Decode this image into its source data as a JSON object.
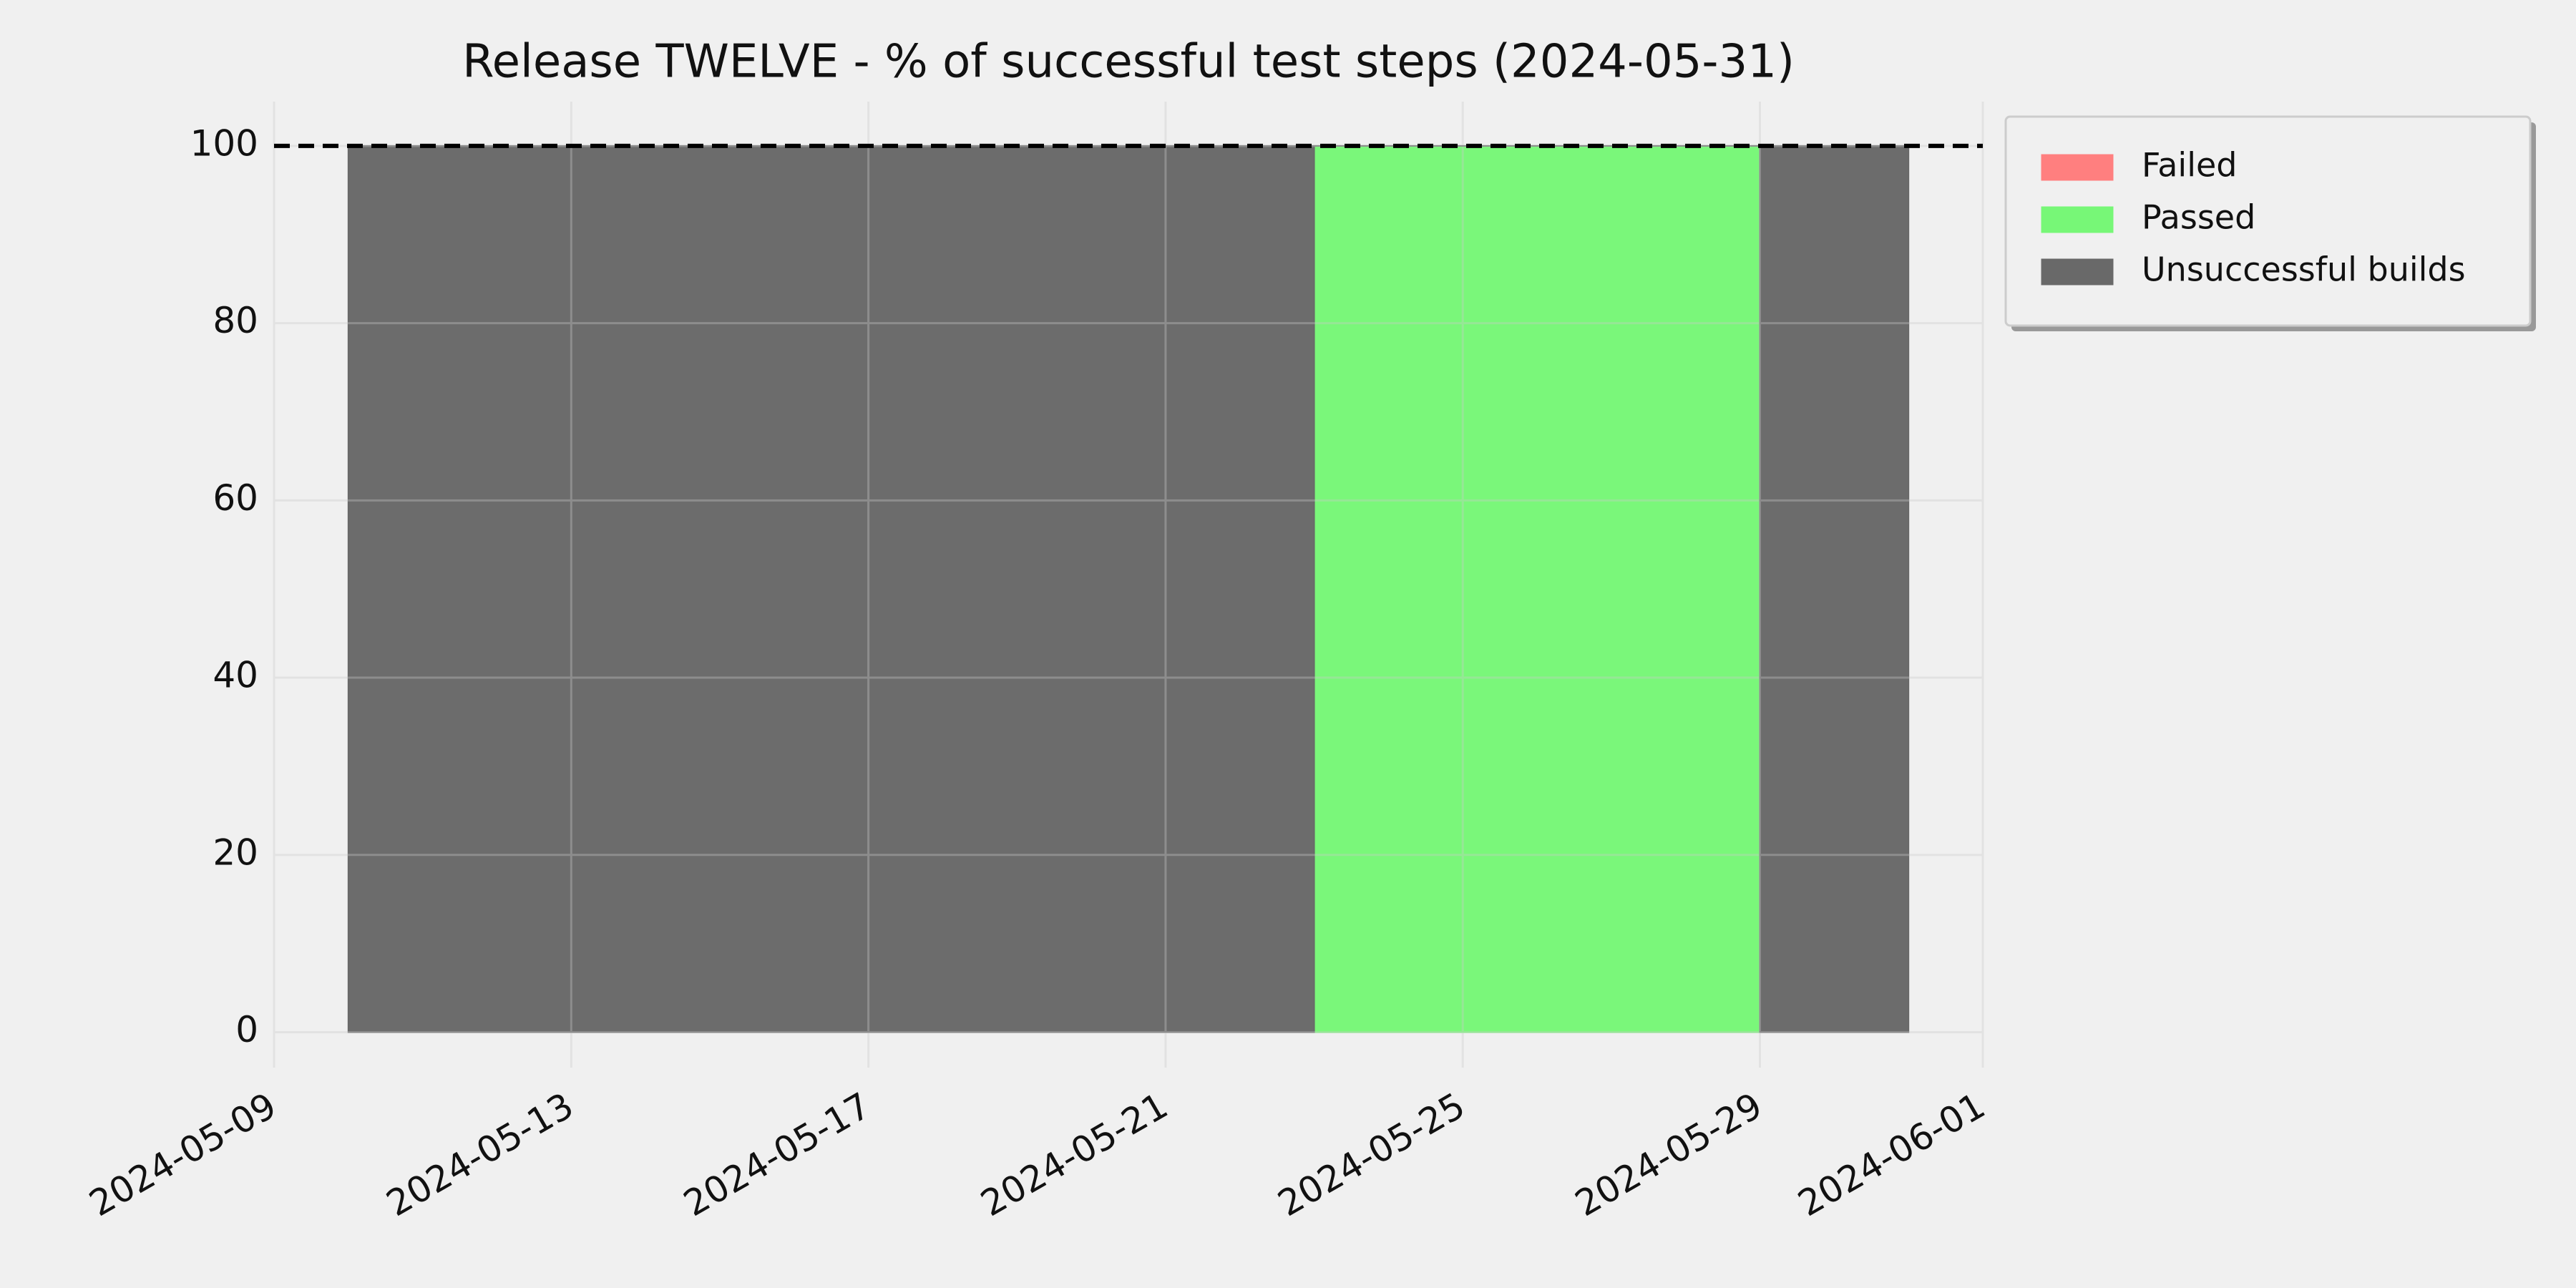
{
  "chart_data": {
    "type": "stacked_step_area",
    "title": "Release TWELVE - % of successful test steps (2024-05-31)",
    "x": [
      "2024-05-10",
      "2024-05-11",
      "2024-05-12",
      "2024-05-13",
      "2024-05-14",
      "2024-05-15",
      "2024-05-16",
      "2024-05-17",
      "2024-05-18",
      "2024-05-19",
      "2024-05-20",
      "2024-05-21",
      "2024-05-22",
      "2024-05-23",
      "2024-05-24",
      "2024-05-25",
      "2024-05-26",
      "2024-05-27",
      "2024-05-28",
      "2024-05-29",
      "2024-05-30",
      "2024-05-31"
    ],
    "series": [
      {
        "name": "Failed",
        "color": "#ff7f7f",
        "values": [
          0,
          0,
          0,
          0,
          0,
          0,
          0,
          0,
          0,
          0,
          0,
          0,
          0,
          0,
          0,
          0,
          0,
          0,
          0,
          0,
          0,
          0
        ]
      },
      {
        "name": "Passed",
        "color": "#77f777",
        "values": [
          0,
          0,
          0,
          0,
          0,
          0,
          0,
          0,
          0,
          0,
          0,
          0,
          0,
          100,
          100,
          100,
          100,
          100,
          100,
          0,
          0,
          0
        ]
      },
      {
        "name": "Unsuccessful builds",
        "color": "#696969",
        "values": [
          100,
          100,
          100,
          100,
          100,
          100,
          100,
          100,
          100,
          100,
          100,
          100,
          100,
          0,
          0,
          0,
          0,
          0,
          0,
          100,
          100,
          100
        ]
      }
    ],
    "xlim": [
      "2024-05-09",
      "2024-06-01"
    ],
    "xticks": [
      "2024-05-09",
      "2024-05-13",
      "2024-05-17",
      "2024-05-21",
      "2024-05-25",
      "2024-05-29",
      "2024-06-01"
    ],
    "ylim": [
      -4,
      105
    ],
    "yticks": [
      0,
      20,
      40,
      60,
      80,
      100
    ],
    "hline": 100,
    "grid": true,
    "legend": "outside-upper-right"
  }
}
